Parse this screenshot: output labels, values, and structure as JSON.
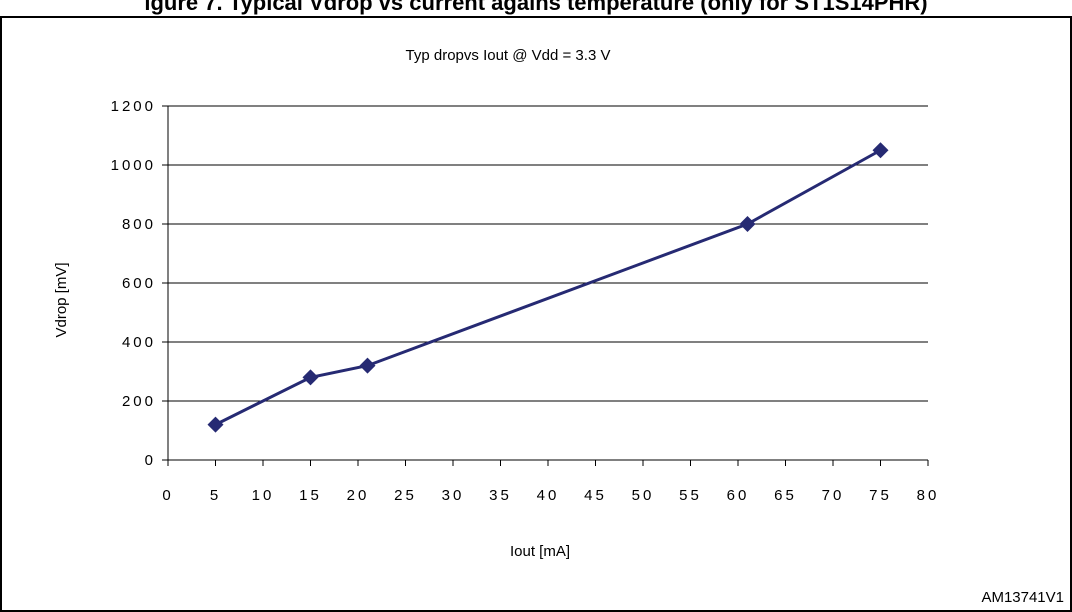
{
  "figure_caption": "igure 7. Typical Vdrop vs current agains temperature (only for ST1S14PHR)",
  "reference_id": "AM13741V1",
  "chart_data": {
    "type": "line",
    "title": "Typ dropvs Iout @ Vdd = 3.3 V",
    "xlabel": "Iout [mA]",
    "ylabel": "Vdrop [mV]",
    "xlim": [
      0,
      80
    ],
    "ylim": [
      0,
      1200
    ],
    "x_ticks": [
      "0",
      "5",
      "10",
      "15",
      "20",
      "25",
      "30",
      "35",
      "40",
      "45",
      "50",
      "55",
      "60",
      "65",
      "70",
      "75",
      "80"
    ],
    "y_ticks": [
      "0",
      "200",
      "400",
      "600",
      "800",
      "1000",
      "1200"
    ],
    "grid": true,
    "legend": "none",
    "series": [
      {
        "color": "#262A73",
        "x": [
          5,
          15,
          21,
          61,
          75
        ],
        "values": [
          120,
          280,
          320,
          800,
          1050
        ]
      }
    ]
  }
}
